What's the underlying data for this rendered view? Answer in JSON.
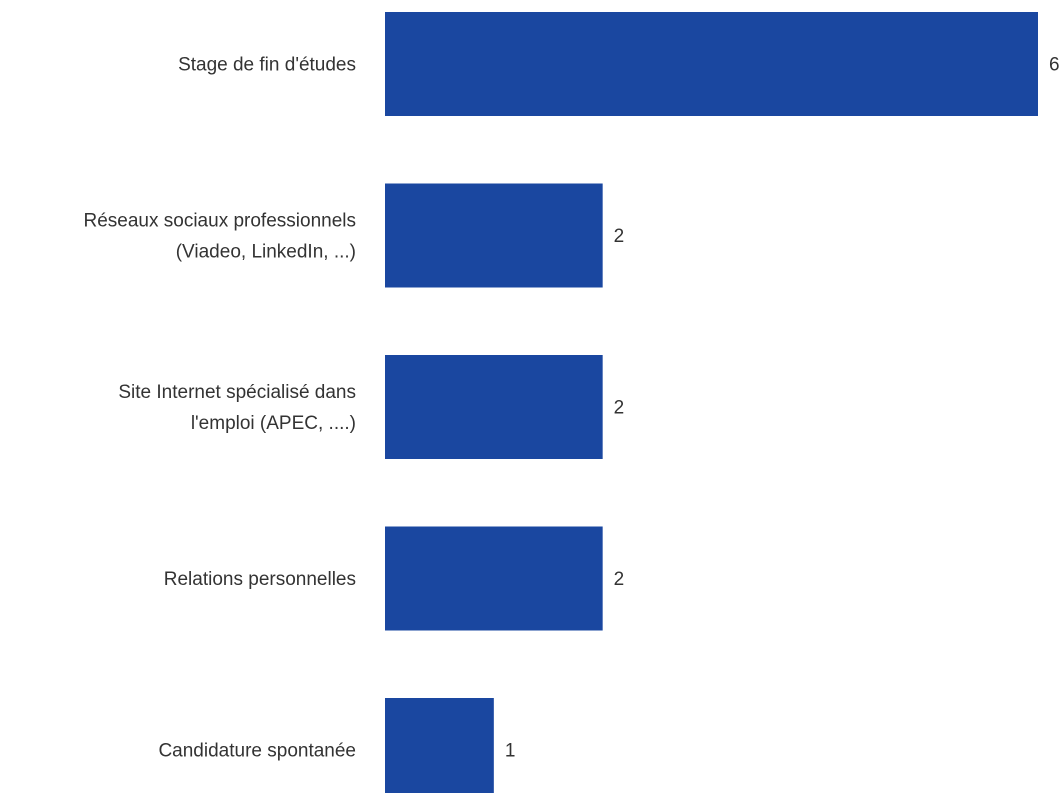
{
  "chart_data": {
    "type": "bar",
    "orientation": "horizontal",
    "title": "",
    "xlabel": "",
    "ylabel": "",
    "grid": false,
    "xlim": [
      0,
      6
    ],
    "categories": [
      [
        "Stage de fin d'études"
      ],
      [
        "Réseaux sociaux professionnels",
        "(Viadeo, LinkedIn, ...)"
      ],
      [
        "Site Internet spécialisé dans",
        "l'emploi (APEC, ....)"
      ],
      [
        "Relations personnelles"
      ],
      [
        "Candidature spontanée"
      ]
    ],
    "values": [
      6,
      2,
      2,
      2,
      1
    ],
    "data_labels": [
      "6",
      "2",
      "2",
      "2",
      "1"
    ],
    "colors": {
      "bar": "#1a47a0",
      "text": "#333333"
    }
  }
}
